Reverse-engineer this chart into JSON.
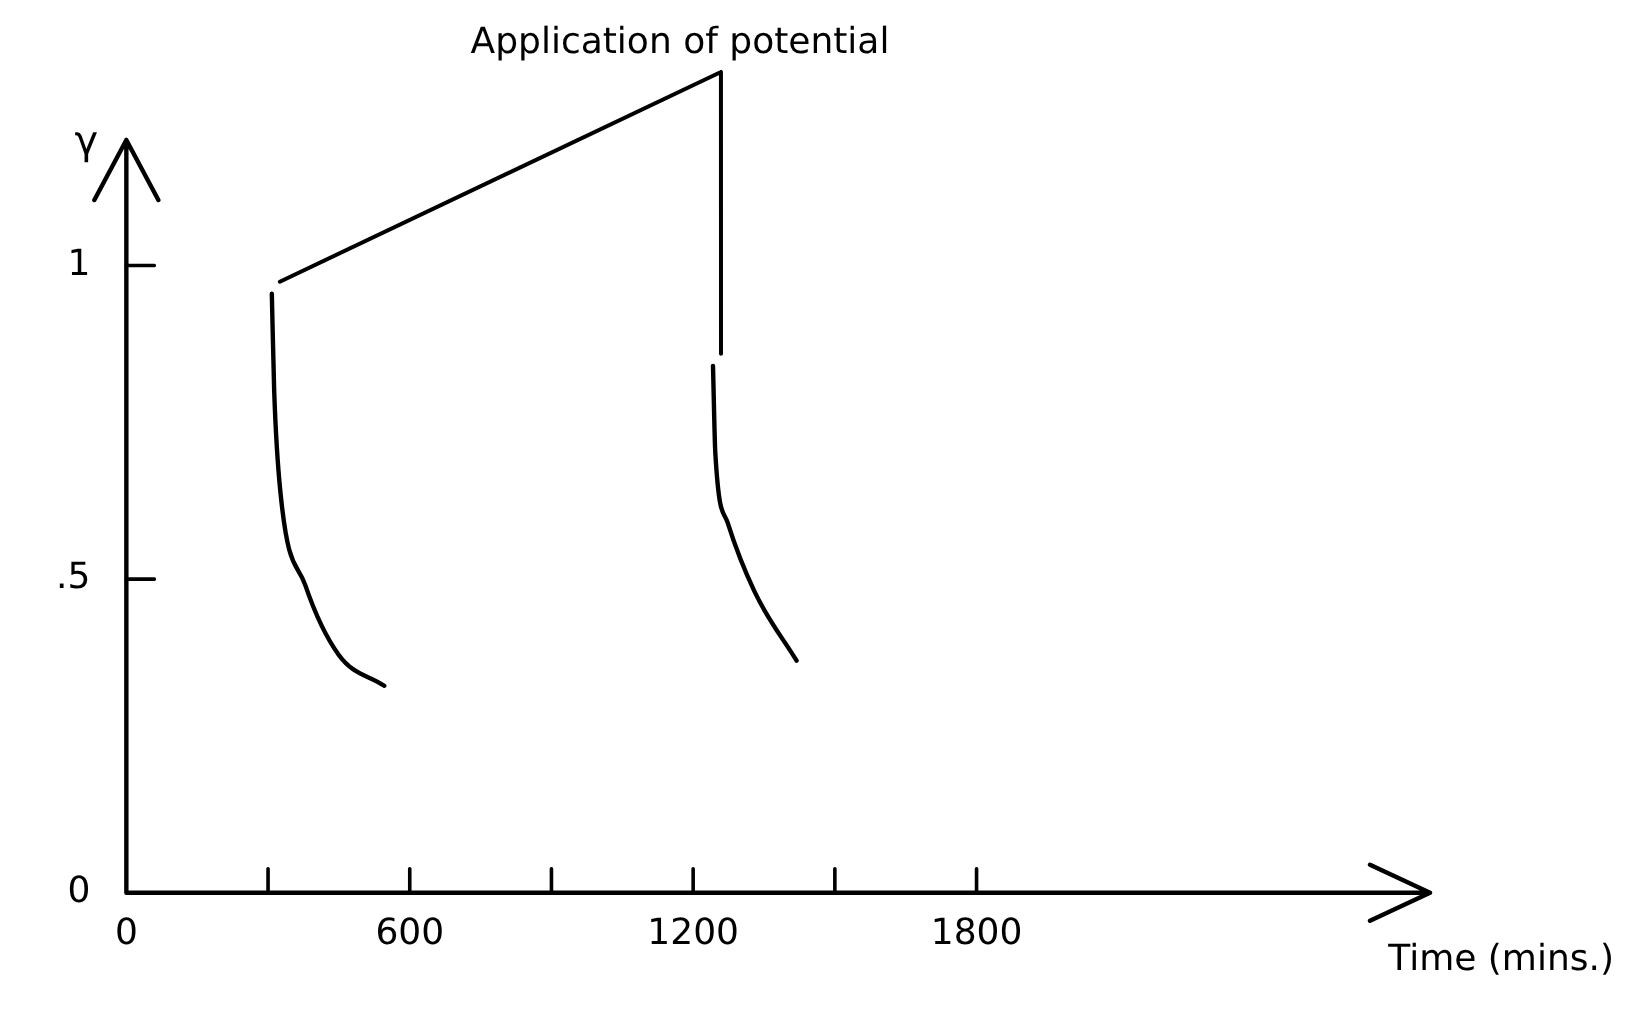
{
  "chart_data": {
    "type": "line",
    "xlabel": "Time (mins.)",
    "ylabel": "γ",
    "annotations": [
      "Application of potential"
    ],
    "series": [
      {
        "color": "#000000",
        "x": [
          308,
          313,
          326,
          379,
          449,
          546
        ],
        "values": [
          0.955,
          0.8,
          0.64,
          0.49,
          0.38,
          0.33
        ]
      },
      {
        "color": "#000000",
        "x": [
          1242,
          1247,
          1273,
          1330,
          1419
        ],
        "values": [
          0.84,
          0.7,
          0.59,
          0.48,
          0.37
        ]
      }
    ],
    "xlim": [
      0,
      2760
    ],
    "ylim": [
      0,
      1.2
    ],
    "xticks": [
      0,
      {
        "value": 300,
        "label": null
      },
      600,
      {
        "value": 900,
        "label": null
      },
      1200,
      {
        "value": 1500,
        "label": null
      },
      1800
    ],
    "yticks": [
      0,
      {
        "value": 0.5,
        "label": ".5"
      },
      1
    ],
    "grid": false,
    "legend": false,
    "marker": "none",
    "line_style": "solid"
  }
}
